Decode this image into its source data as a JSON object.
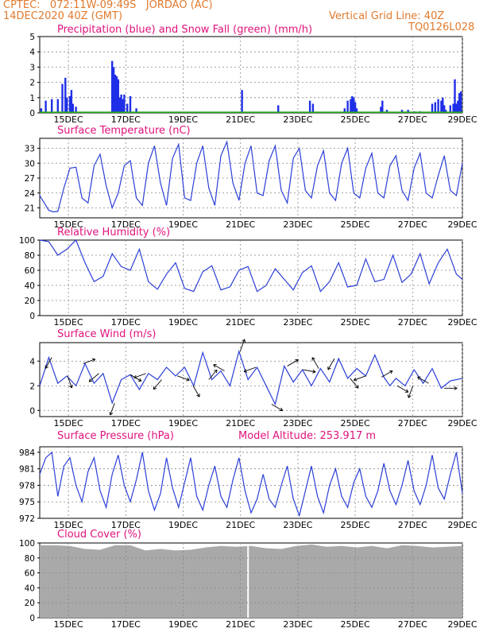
{
  "header": {
    "station": "CPTEC:   072:11W-09:49S   JORDAO (AC)",
    "run": "14DEC2020 40Z (GMT)",
    "grid_note": "Vertical Grid Line: 40Z",
    "model_id": "TQ0126L028"
  },
  "colors": {
    "header": "#e07a2e",
    "title": "#e0127c",
    "line": "#2b3fd6",
    "bar": "#1f2fe8",
    "snow": "#22aa22",
    "cloud": "#a9a9a9"
  },
  "x_tick_labels": [
    "15DEC",
    "17DEC",
    "19DEC",
    "21DEC",
    "23DEC",
    "25DEC",
    "27DEC",
    "29DEC"
  ],
  "chart_data": [
    {
      "type": "bar",
      "title": "Precipitation (blue) and Snow Fall (green) (mm/h)",
      "ylim": [
        0,
        5
      ],
      "yticks": [
        0,
        1,
        2,
        3,
        4,
        5
      ],
      "grid": true,
      "series": [
        {
          "name": "Precipitation",
          "x": [
            0.05,
            0.2,
            0.4,
            0.6,
            0.75,
            0.85,
            0.9,
            1.0,
            1.05,
            1.1,
            1.2,
            2.4,
            2.45,
            2.5,
            2.55,
            2.6,
            2.65,
            2.7,
            2.75,
            2.8,
            2.9,
            3.0,
            3.2,
            6.7,
            7.9,
            8.95,
            9.05,
            10.1,
            10.2,
            10.3,
            10.35,
            10.4,
            10.45,
            10.5,
            11.3,
            11.35,
            11.5,
            12.0,
            12.2,
            12.4,
            12.6,
            13.0,
            13.1,
            13.2,
            13.3,
            13.35,
            13.4,
            13.45,
            13.6,
            13.7,
            13.75,
            13.8,
            13.85,
            13.9,
            13.95
          ],
          "values": [
            0.3,
            0.8,
            0.9,
            0.9,
            1.9,
            2.3,
            1.0,
            1.1,
            1.5,
            0.6,
            0.4,
            3.4,
            3.0,
            2.5,
            2.4,
            2.2,
            1.0,
            1.2,
            0.9,
            1.2,
            0.6,
            1.1,
            0.3,
            1.5,
            0.5,
            0.8,
            0.6,
            0.3,
            0.8,
            0.9,
            1.1,
            1.0,
            0.7,
            0.3,
            0.4,
            0.8,
            0.2,
            0.2,
            0.2,
            0.1,
            0.1,
            0.6,
            0.7,
            0.9,
            0.8,
            1.0,
            0.5,
            0.2,
            0.5,
            0.6,
            2.2,
            0.6,
            0.8,
            1.3,
            1.4
          ]
        },
        {
          "name": "Snow Fall",
          "x": [
            0,
            14
          ],
          "values": [
            0,
            0
          ]
        }
      ]
    },
    {
      "type": "line",
      "title": "Surface Temperature (nC)",
      "ylim": [
        19,
        35
      ],
      "yticks": [
        21,
        24,
        27,
        30,
        33
      ],
      "grid": true,
      "series": [
        {
          "name": "Temperature",
          "x": [
            0,
            0.15,
            0.3,
            0.45,
            0.6,
            0.8,
            1.0,
            1.2,
            1.4,
            1.6,
            1.8,
            2.0,
            2.2,
            2.4,
            2.6,
            2.8,
            3.0,
            3.2,
            3.4,
            3.6,
            3.8,
            4.0,
            4.2,
            4.4,
            4.6,
            4.8,
            5.0,
            5.2,
            5.4,
            5.6,
            5.8,
            6.0,
            6.2,
            6.4,
            6.6,
            6.8,
            7.0,
            7.2,
            7.4,
            7.6,
            7.8,
            8.0,
            8.2,
            8.4,
            8.6,
            8.8,
            9.0,
            9.2,
            9.4,
            9.6,
            9.8,
            10.0,
            10.2,
            10.4,
            10.6,
            10.8,
            11.0,
            11.2,
            11.4,
            11.6,
            11.8,
            12.0,
            12.2,
            12.4,
            12.6,
            12.8,
            13.0,
            13.2,
            13.4,
            13.6,
            13.8,
            14.0
          ],
          "values": [
            23.5,
            22.0,
            20.5,
            20.2,
            20.3,
            25.0,
            29.0,
            29.2,
            23.0,
            22.0,
            29.5,
            31.8,
            25.5,
            21.0,
            24.0,
            29.5,
            30.5,
            23.0,
            21.5,
            30.0,
            33.5,
            26.0,
            21.5,
            31.0,
            33.8,
            23.0,
            22.5,
            30.0,
            33.5,
            25.0,
            21.5,
            31.5,
            34.3,
            26.0,
            22.5,
            30.0,
            33.5,
            24.0,
            23.5,
            30.5,
            33.5,
            24.5,
            22.0,
            31.0,
            33.0,
            24.5,
            23.0,
            29.5,
            32.5,
            24.0,
            22.5,
            30.0,
            33.0,
            24.0,
            23.0,
            29.0,
            32.0,
            24.0,
            23.0,
            29.5,
            31.5,
            24.5,
            22.5,
            29.0,
            32.0,
            24.0,
            23.0,
            27.5,
            31.5,
            24.5,
            23.5,
            30.0
          ]
        }
      ]
    },
    {
      "type": "line",
      "title": "Relative Humidity (%)",
      "ylim": [
        0,
        100
      ],
      "yticks": [
        0,
        20,
        40,
        60,
        80,
        100
      ],
      "grid": true,
      "series": [
        {
          "name": "Relative Humidity",
          "x": [
            0,
            0.3,
            0.6,
            0.9,
            1.2,
            1.5,
            1.8,
            2.1,
            2.4,
            2.7,
            3.0,
            3.3,
            3.6,
            3.9,
            4.2,
            4.5,
            4.8,
            5.1,
            5.4,
            5.7,
            6.0,
            6.3,
            6.6,
            6.9,
            7.2,
            7.5,
            7.8,
            8.1,
            8.4,
            8.7,
            9.0,
            9.3,
            9.6,
            9.9,
            10.2,
            10.5,
            10.8,
            11.1,
            11.4,
            11.7,
            12.0,
            12.3,
            12.6,
            12.9,
            13.2,
            13.5,
            13.8,
            14.0
          ],
          "values": [
            100,
            98,
            80,
            88,
            100,
            70,
            45,
            52,
            82,
            65,
            60,
            88,
            45,
            35,
            55,
            70,
            36,
            32,
            58,
            66,
            34,
            38,
            60,
            65,
            32,
            40,
            62,
            48,
            34,
            57,
            66,
            32,
            45,
            70,
            38,
            40,
            75,
            45,
            48,
            80,
            44,
            55,
            82,
            42,
            70,
            88,
            55,
            48
          ]
        }
      ]
    },
    {
      "type": "line",
      "title": "Surface Wind (m/s)",
      "ylim": [
        -0.5,
        5.5
      ],
      "yticks": [
        0,
        2,
        4
      ],
      "grid": true,
      "series": [
        {
          "name": "Wind Speed",
          "x": [
            0,
            0.3,
            0.6,
            0.9,
            1.2,
            1.5,
            1.8,
            2.1,
            2.4,
            2.7,
            3.0,
            3.3,
            3.6,
            3.9,
            4.2,
            4.5,
            4.8,
            5.1,
            5.4,
            5.7,
            6.0,
            6.3,
            6.6,
            6.9,
            7.2,
            7.5,
            7.8,
            8.1,
            8.4,
            8.7,
            9.0,
            9.3,
            9.6,
            9.9,
            10.2,
            10.5,
            10.8,
            11.1,
            11.4,
            11.6,
            11.8,
            12.1,
            12.4,
            12.7,
            13.0,
            13.3,
            13.6,
            13.8,
            14.0
          ],
          "values": [
            2.0,
            4.3,
            2.2,
            2.8,
            2.0,
            3.8,
            2.2,
            3.0,
            0.6,
            2.5,
            2.9,
            1.7,
            3.0,
            2.5,
            3.5,
            2.8,
            3.5,
            2.0,
            4.7,
            2.5,
            3.2,
            2.0,
            4.8,
            2.5,
            3.5,
            2.0,
            0.5,
            3.6,
            2.3,
            3.3,
            2.0,
            3.4,
            2.3,
            4.2,
            2.6,
            3.4,
            2.8,
            4.5,
            2.7,
            2.0,
            2.6,
            2.0,
            3.3,
            2.2,
            3.4,
            1.8,
            2.4,
            2.5,
            2.6
          ]
        }
      ]
    },
    {
      "type": "line",
      "title": "Surface Pressure (hPa)",
      "subtitle": "Model Altitude: 253.917  m",
      "ylim": [
        972,
        985
      ],
      "yticks": [
        972,
        975,
        978,
        981,
        984
      ],
      "grid": true,
      "series": [
        {
          "name": "Pressure",
          "x": [
            0,
            0.2,
            0.4,
            0.6,
            0.8,
            1.0,
            1.2,
            1.4,
            1.6,
            1.8,
            2.0,
            2.2,
            2.4,
            2.6,
            2.8,
            3.0,
            3.2,
            3.4,
            3.6,
            3.8,
            4.0,
            4.2,
            4.4,
            4.6,
            4.8,
            5.0,
            5.2,
            5.4,
            5.6,
            5.8,
            6.0,
            6.2,
            6.4,
            6.6,
            6.8,
            7.0,
            7.2,
            7.4,
            7.6,
            7.8,
            8.0,
            8.2,
            8.4,
            8.6,
            8.8,
            9.0,
            9.2,
            9.4,
            9.6,
            9.8,
            10.0,
            10.2,
            10.4,
            10.6,
            10.8,
            11.0,
            11.2,
            11.4,
            11.6,
            11.8,
            12.0,
            12.2,
            12.4,
            12.6,
            12.8,
            13.0,
            13.2,
            13.4,
            13.6,
            13.8,
            14.0
          ],
          "values": [
            980.0,
            983.0,
            984.0,
            976.0,
            981.5,
            983.0,
            978.0,
            975.0,
            980.5,
            983.0,
            977.0,
            974.0,
            980.0,
            983.5,
            978.0,
            975.0,
            979.0,
            984.0,
            977.0,
            973.5,
            976.5,
            983.0,
            977.5,
            974.0,
            978.5,
            983.0,
            976.0,
            973.5,
            978.0,
            981.5,
            976.0,
            974.0,
            979.0,
            983.0,
            977.0,
            973.0,
            975.5,
            980.0,
            975.5,
            974.0,
            978.0,
            981.5,
            975.5,
            972.5,
            977.0,
            981.5,
            976.0,
            973.0,
            978.0,
            981.0,
            976.0,
            974.0,
            978.5,
            981.0,
            976.0,
            974.0,
            977.0,
            982.0,
            977.0,
            974.5,
            978.0,
            982.5,
            977.0,
            974.5,
            978.0,
            983.5,
            977.5,
            975.5,
            980.0,
            984.0,
            976.5
          ]
        }
      ]
    },
    {
      "type": "area",
      "title": "Cloud Cover (%)",
      "ylim": [
        0,
        100
      ],
      "yticks": [
        0,
        20,
        40,
        60,
        80,
        100
      ],
      "grid": true,
      "series": [
        {
          "name": "Cloud Cover",
          "x": [
            0,
            0.5,
            1.0,
            1.5,
            2.0,
            2.5,
            3.0,
            3.5,
            4.0,
            4.5,
            5.0,
            5.5,
            6.0,
            6.5,
            7.0,
            7.5,
            8.0,
            8.5,
            9.0,
            9.5,
            10.0,
            10.5,
            11.0,
            11.5,
            12.0,
            12.5,
            13.0,
            13.5,
            14.0
          ],
          "values": [
            97,
            97,
            96,
            92,
            91,
            97,
            97,
            90,
            92,
            90,
            91,
            94,
            96,
            95,
            96,
            93,
            92,
            96,
            98,
            95,
            96,
            94,
            96,
            93,
            97,
            96,
            94,
            95,
            96
          ]
        }
      ]
    }
  ]
}
